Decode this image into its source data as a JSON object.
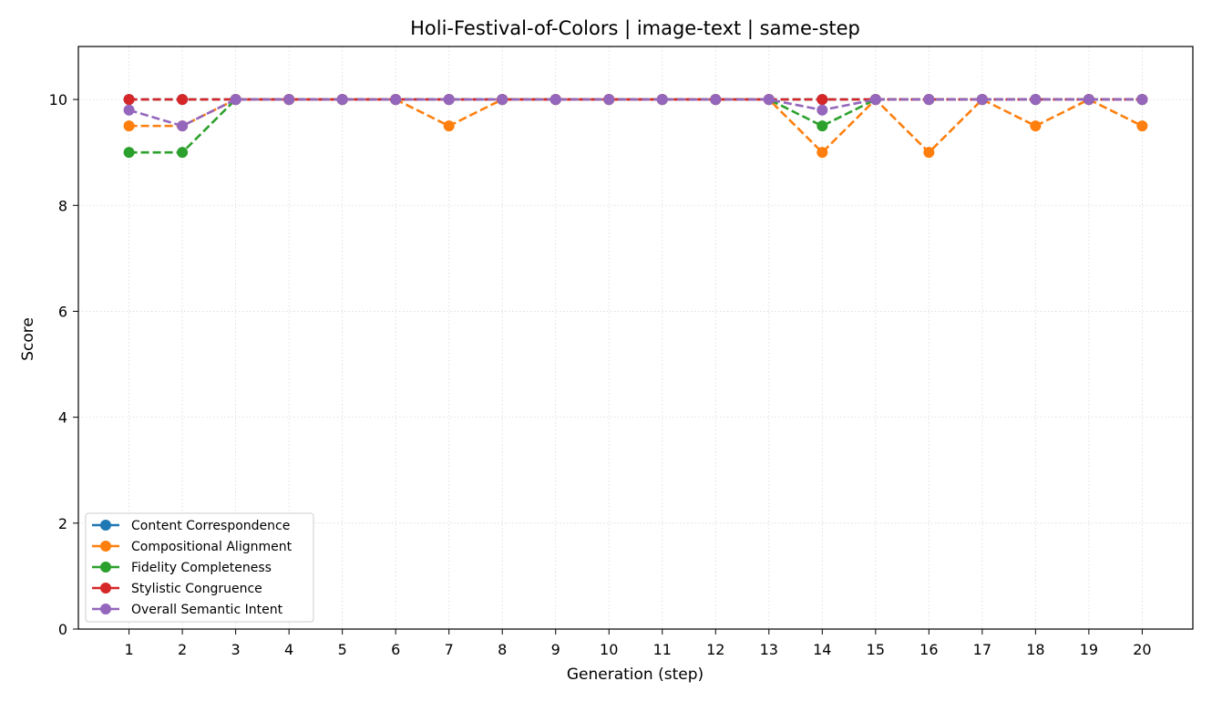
{
  "chart_data": {
    "type": "line",
    "title": "Holi-Festival-of-Colors | image-text | same-step",
    "xlabel": "Generation (step)",
    "ylabel": "Score",
    "x": [
      1,
      2,
      3,
      4,
      5,
      6,
      7,
      8,
      9,
      10,
      11,
      12,
      13,
      14,
      15,
      16,
      17,
      18,
      19,
      20
    ],
    "ylim": [
      0,
      11
    ],
    "yticks": [
      0,
      2,
      4,
      6,
      8,
      10
    ],
    "grid": true,
    "legend_position": "lower-left",
    "series": [
      {
        "name": "Content Correspondence",
        "color": "#1f77b4",
        "values": [
          10,
          10,
          10,
          10,
          10,
          10,
          10,
          10,
          10,
          10,
          10,
          10,
          10,
          10,
          10,
          10,
          10,
          10,
          10,
          10
        ]
      },
      {
        "name": "Compositional Alignment",
        "color": "#ff7f0e",
        "values": [
          9.5,
          9.5,
          10,
          10,
          10,
          10,
          9.5,
          10,
          10,
          10,
          10,
          10,
          10,
          9,
          10,
          9,
          10,
          9.5,
          10,
          9.5
        ]
      },
      {
        "name": "Fidelity Completeness",
        "color": "#2ca02c",
        "values": [
          9,
          9,
          10,
          10,
          10,
          10,
          10,
          10,
          10,
          10,
          10,
          10,
          10,
          9.5,
          10,
          10,
          10,
          10,
          10,
          10
        ]
      },
      {
        "name": "Stylistic Congruence",
        "color": "#d62728",
        "values": [
          10,
          10,
          10,
          10,
          10,
          10,
          10,
          10,
          10,
          10,
          10,
          10,
          10,
          10,
          10,
          10,
          10,
          10,
          10,
          10
        ]
      },
      {
        "name": "Overall Semantic Intent",
        "color": "#9467bd",
        "values": [
          9.8,
          9.5,
          10,
          10,
          10,
          10,
          10,
          10,
          10,
          10,
          10,
          10,
          10,
          9.8,
          10,
          10,
          10,
          10,
          10,
          10
        ]
      }
    ]
  }
}
